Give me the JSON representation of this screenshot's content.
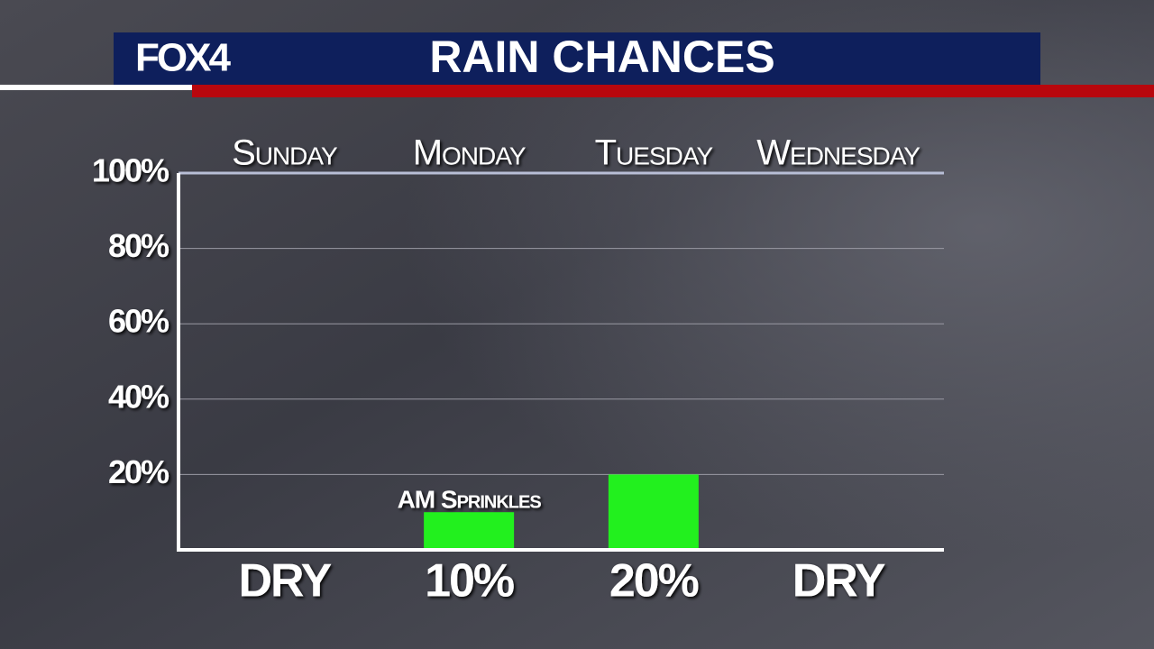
{
  "logo": "FOX4",
  "chart_data": {
    "type": "bar",
    "title": "RAIN CHANCES",
    "categories": [
      "Sunday",
      "Monday",
      "Tuesday",
      "Wednesday"
    ],
    "values": [
      0,
      10,
      20,
      0
    ],
    "value_labels": [
      "DRY",
      "10%",
      "20%",
      "DRY"
    ],
    "annotation": "AM Sprinkles",
    "color": "#22f01e",
    "ylim": [
      0,
      100
    ],
    "yticks": [
      {
        "value": 20,
        "label": "20%"
      },
      {
        "value": 40,
        "label": "40%"
      },
      {
        "value": 60,
        "label": "60%"
      },
      {
        "value": 80,
        "label": "80%"
      },
      {
        "value": 100,
        "label": "100%"
      }
    ],
    "grid": true
  }
}
